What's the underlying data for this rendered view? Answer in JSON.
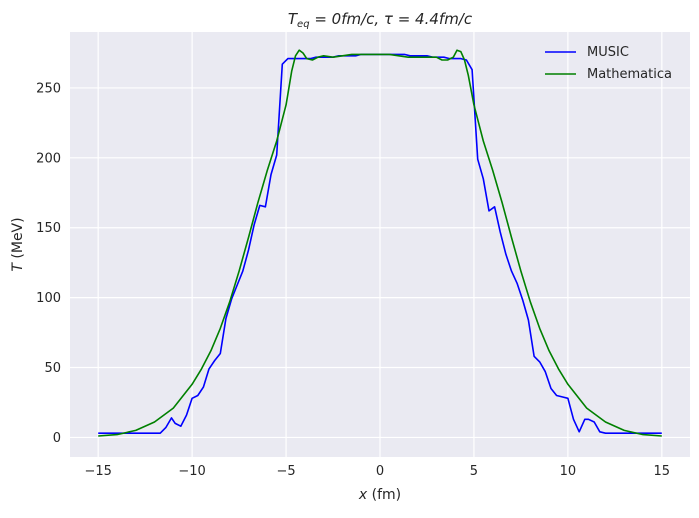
{
  "chart_data": {
    "type": "line",
    "title": "T_eq = 0fm/c, τ = 4.4fm/c",
    "title_parts": {
      "sub_main": "T",
      "sub_script": "eq",
      "rest": " = 0fm/c, τ = 4.4fm/c"
    },
    "xlabel": "x (fm)",
    "xlabel_parts": {
      "var": "x",
      "rest": " (fm)"
    },
    "ylabel": "T (MeV)",
    "ylabel_parts": {
      "var": "T",
      "rest": " (MeV)"
    },
    "xlim": [
      -16.5,
      16.5
    ],
    "ylim": [
      -14,
      290
    ],
    "xticks": [
      -15,
      -10,
      -5,
      0,
      5,
      10,
      15
    ],
    "xtick_labels": [
      "−15",
      "−10",
      "−5",
      "0",
      "5",
      "10",
      "15"
    ],
    "yticks": [
      0,
      50,
      100,
      150,
      200,
      250
    ],
    "ytick_labels": [
      "0",
      "50",
      "100",
      "150",
      "200",
      "250"
    ],
    "grid": true,
    "legend_position": "top-right",
    "series": [
      {
        "name": "MUSIC",
        "color": "#0000ff",
        "x": [
          -15,
          -14,
          -13,
          -12,
          -11.7,
          -11.4,
          -11.1,
          -10.9,
          -10.6,
          -10.3,
          -10.0,
          -9.7,
          -9.4,
          -9.1,
          -8.8,
          -8.5,
          -8.2,
          -7.9,
          -7.6,
          -7.3,
          -7.0,
          -6.7,
          -6.4,
          -6.1,
          -5.8,
          -5.5,
          -5.2,
          -4.9,
          -4.6,
          -4.3,
          -4.0,
          -3.7,
          -3.4,
          -3.1,
          -2.8,
          -2.5,
          -2.2,
          -1.9,
          -1.6,
          -1.3,
          -1.0,
          -0.7,
          -0.4,
          0,
          0.4,
          0.7,
          1.0,
          1.3,
          1.6,
          1.9,
          2.2,
          2.5,
          2.8,
          3.1,
          3.4,
          3.7,
          4.0,
          4.3,
          4.6,
          4.9,
          5.2,
          5.5,
          5.8,
          6.1,
          6.4,
          6.7,
          7.0,
          7.3,
          7.6,
          7.9,
          8.2,
          8.5,
          8.8,
          9.1,
          9.4,
          9.7,
          10.0,
          10.3,
          10.6,
          10.9,
          11.1,
          11.4,
          11.7,
          12,
          13,
          14,
          15
        ],
        "y": [
          3,
          3,
          3,
          3,
          3,
          7,
          14,
          10,
          8,
          16,
          28,
          30,
          36,
          49,
          55,
          60,
          85,
          99,
          109,
          119,
          134,
          152,
          166,
          165,
          188,
          202,
          267,
          271,
          271,
          271,
          271,
          271,
          272,
          272,
          272,
          272,
          273,
          273,
          273,
          273,
          274,
          274,
          274,
          274,
          274,
          274,
          274,
          274,
          273,
          273,
          273,
          273,
          272,
          272,
          272,
          271,
          271,
          271,
          270,
          263,
          199,
          185,
          162,
          165,
          147,
          131,
          119,
          110,
          98,
          84,
          58,
          54,
          47,
          35,
          30,
          29,
          28,
          13,
          4,
          13,
          13,
          11,
          4,
          3,
          3,
          3,
          3
        ]
      },
      {
        "name": "Mathematica",
        "color": "#008000",
        "x": [
          -15,
          -14,
          -13,
          -12,
          -11,
          -10,
          -9.5,
          -9,
          -8.5,
          -8,
          -7.5,
          -7,
          -6.5,
          -6,
          -5.5,
          -5,
          -4.7,
          -4.5,
          -4.3,
          -4.1,
          -3.9,
          -3.6,
          -3.3,
          -3,
          -2.5,
          -2,
          -1.5,
          -1,
          -0.5,
          0,
          0.5,
          1,
          1.5,
          2,
          2.5,
          3,
          3.3,
          3.6,
          3.9,
          4.1,
          4.3,
          4.5,
          4.7,
          5,
          5.5,
          6,
          6.5,
          7,
          7.5,
          8,
          8.5,
          9,
          9.5,
          10,
          11,
          12,
          13,
          14,
          15
        ],
        "y": [
          1,
          2,
          5,
          11,
          21,
          38,
          49,
          62,
          78,
          97,
          119,
          143,
          168,
          191,
          212,
          238,
          262,
          273,
          277,
          275,
          271,
          270,
          272,
          273,
          272,
          273,
          274,
          274,
          274,
          274,
          274,
          273,
          272,
          272,
          272,
          272,
          270,
          270,
          272,
          277,
          276,
          270,
          259,
          238,
          212,
          191,
          168,
          143,
          119,
          97,
          78,
          62,
          49,
          38,
          21,
          11,
          5,
          2,
          1
        ]
      }
    ]
  }
}
